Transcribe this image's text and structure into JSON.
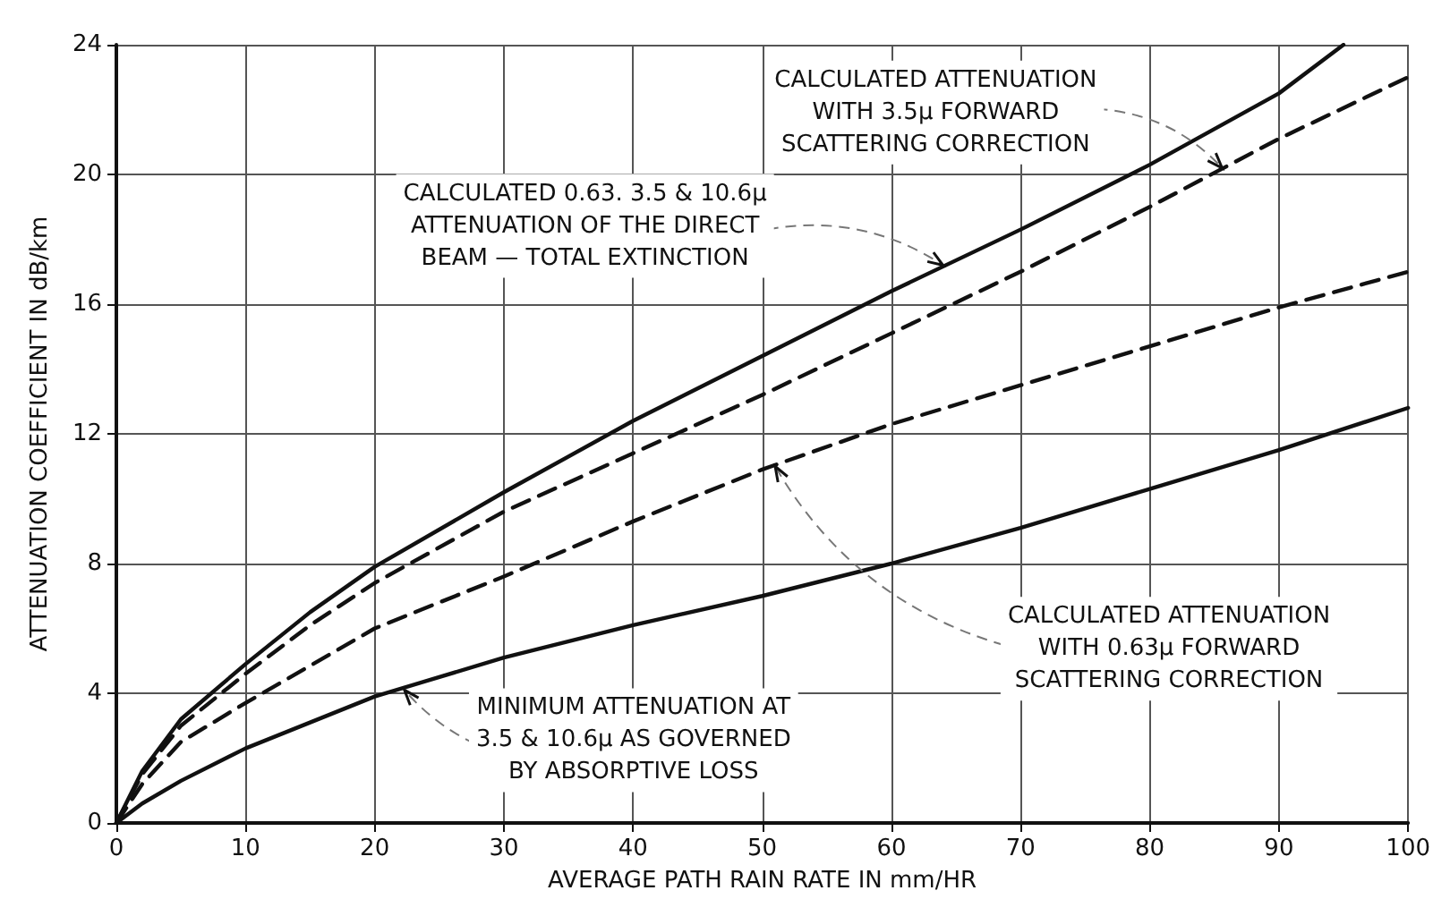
{
  "chart_data": {
    "type": "line",
    "xlabel": "AVERAGE PATH RAIN RATE IN mm/HR",
    "ylabel": "ATTENUATION COEFFICIENT IN dB/km",
    "xlim": [
      0,
      100
    ],
    "xticks": [
      0,
      10,
      20,
      30,
      40,
      50,
      60,
      70,
      80,
      90,
      100
    ],
    "ylim": [
      0,
      24
    ],
    "yticks": [
      0,
      4,
      8,
      12,
      16,
      20,
      24
    ],
    "grid": true,
    "marker": "none",
    "series": [
      {
        "color": "#111111",
        "line_style": "solid",
        "x": [
          0,
          2,
          5,
          10,
          15,
          20,
          30,
          40,
          50,
          60,
          70,
          80,
          90,
          95
        ],
        "values": [
          0,
          1.6,
          3.2,
          4.9,
          6.5,
          7.9,
          10.2,
          12.4,
          14.4,
          16.4,
          18.3,
          20.3,
          22.5,
          24
        ]
      },
      {
        "color": "#111111",
        "line_style": "dashed",
        "x": [
          0,
          2,
          5,
          10,
          15,
          20,
          30,
          40,
          50,
          60,
          70,
          80,
          90,
          100
        ],
        "values": [
          0,
          1.5,
          3.0,
          4.6,
          6.1,
          7.4,
          9.6,
          11.4,
          13.2,
          15.1,
          17.0,
          19.0,
          21.1,
          23.0
        ]
      },
      {
        "color": "#111111",
        "line_style": "dashed",
        "x": [
          0,
          2,
          5,
          10,
          20,
          30,
          40,
          50,
          60,
          70,
          80,
          90,
          100
        ],
        "values": [
          0,
          1.2,
          2.5,
          3.7,
          6.0,
          7.6,
          9.3,
          10.9,
          12.3,
          13.5,
          14.7,
          15.9,
          17.0
        ]
      },
      {
        "color": "#111111",
        "line_style": "solid",
        "x": [
          0,
          2,
          5,
          10,
          20,
          30,
          40,
          50,
          60,
          70,
          80,
          90,
          100
        ],
        "values": [
          0,
          0.6,
          1.3,
          2.3,
          3.9,
          5.1,
          6.1,
          7.0,
          8.0,
          9.1,
          10.3,
          11.5,
          12.8
        ]
      }
    ],
    "annotations": [
      {
        "text": "CALCULATED ATTENUATION\nWITH 3.5μ FORWARD\nSCATTERING CORRECTION",
        "x": 85.6,
        "y": 20.2
      },
      {
        "text": "CALCULATED 0.63. 3.5 & 10.6μ\nATTENUATION OF THE DIRECT\nBEAM — TOTAL EXTINCTION",
        "x": 64,
        "y": 17.2
      },
      {
        "text": "CALCULATED ATTENUATION\nWITH 0.63μ FORWARD\nSCATTERING CORRECTION",
        "x": 51,
        "y": 11.0
      },
      {
        "text": "MINIMUM ATTENUATION AT\n3.5 & 10.6μ AS GOVERNED\nBY ABSORPTIVE LOSS",
        "x": 22.3,
        "y": 4.1
      }
    ]
  }
}
